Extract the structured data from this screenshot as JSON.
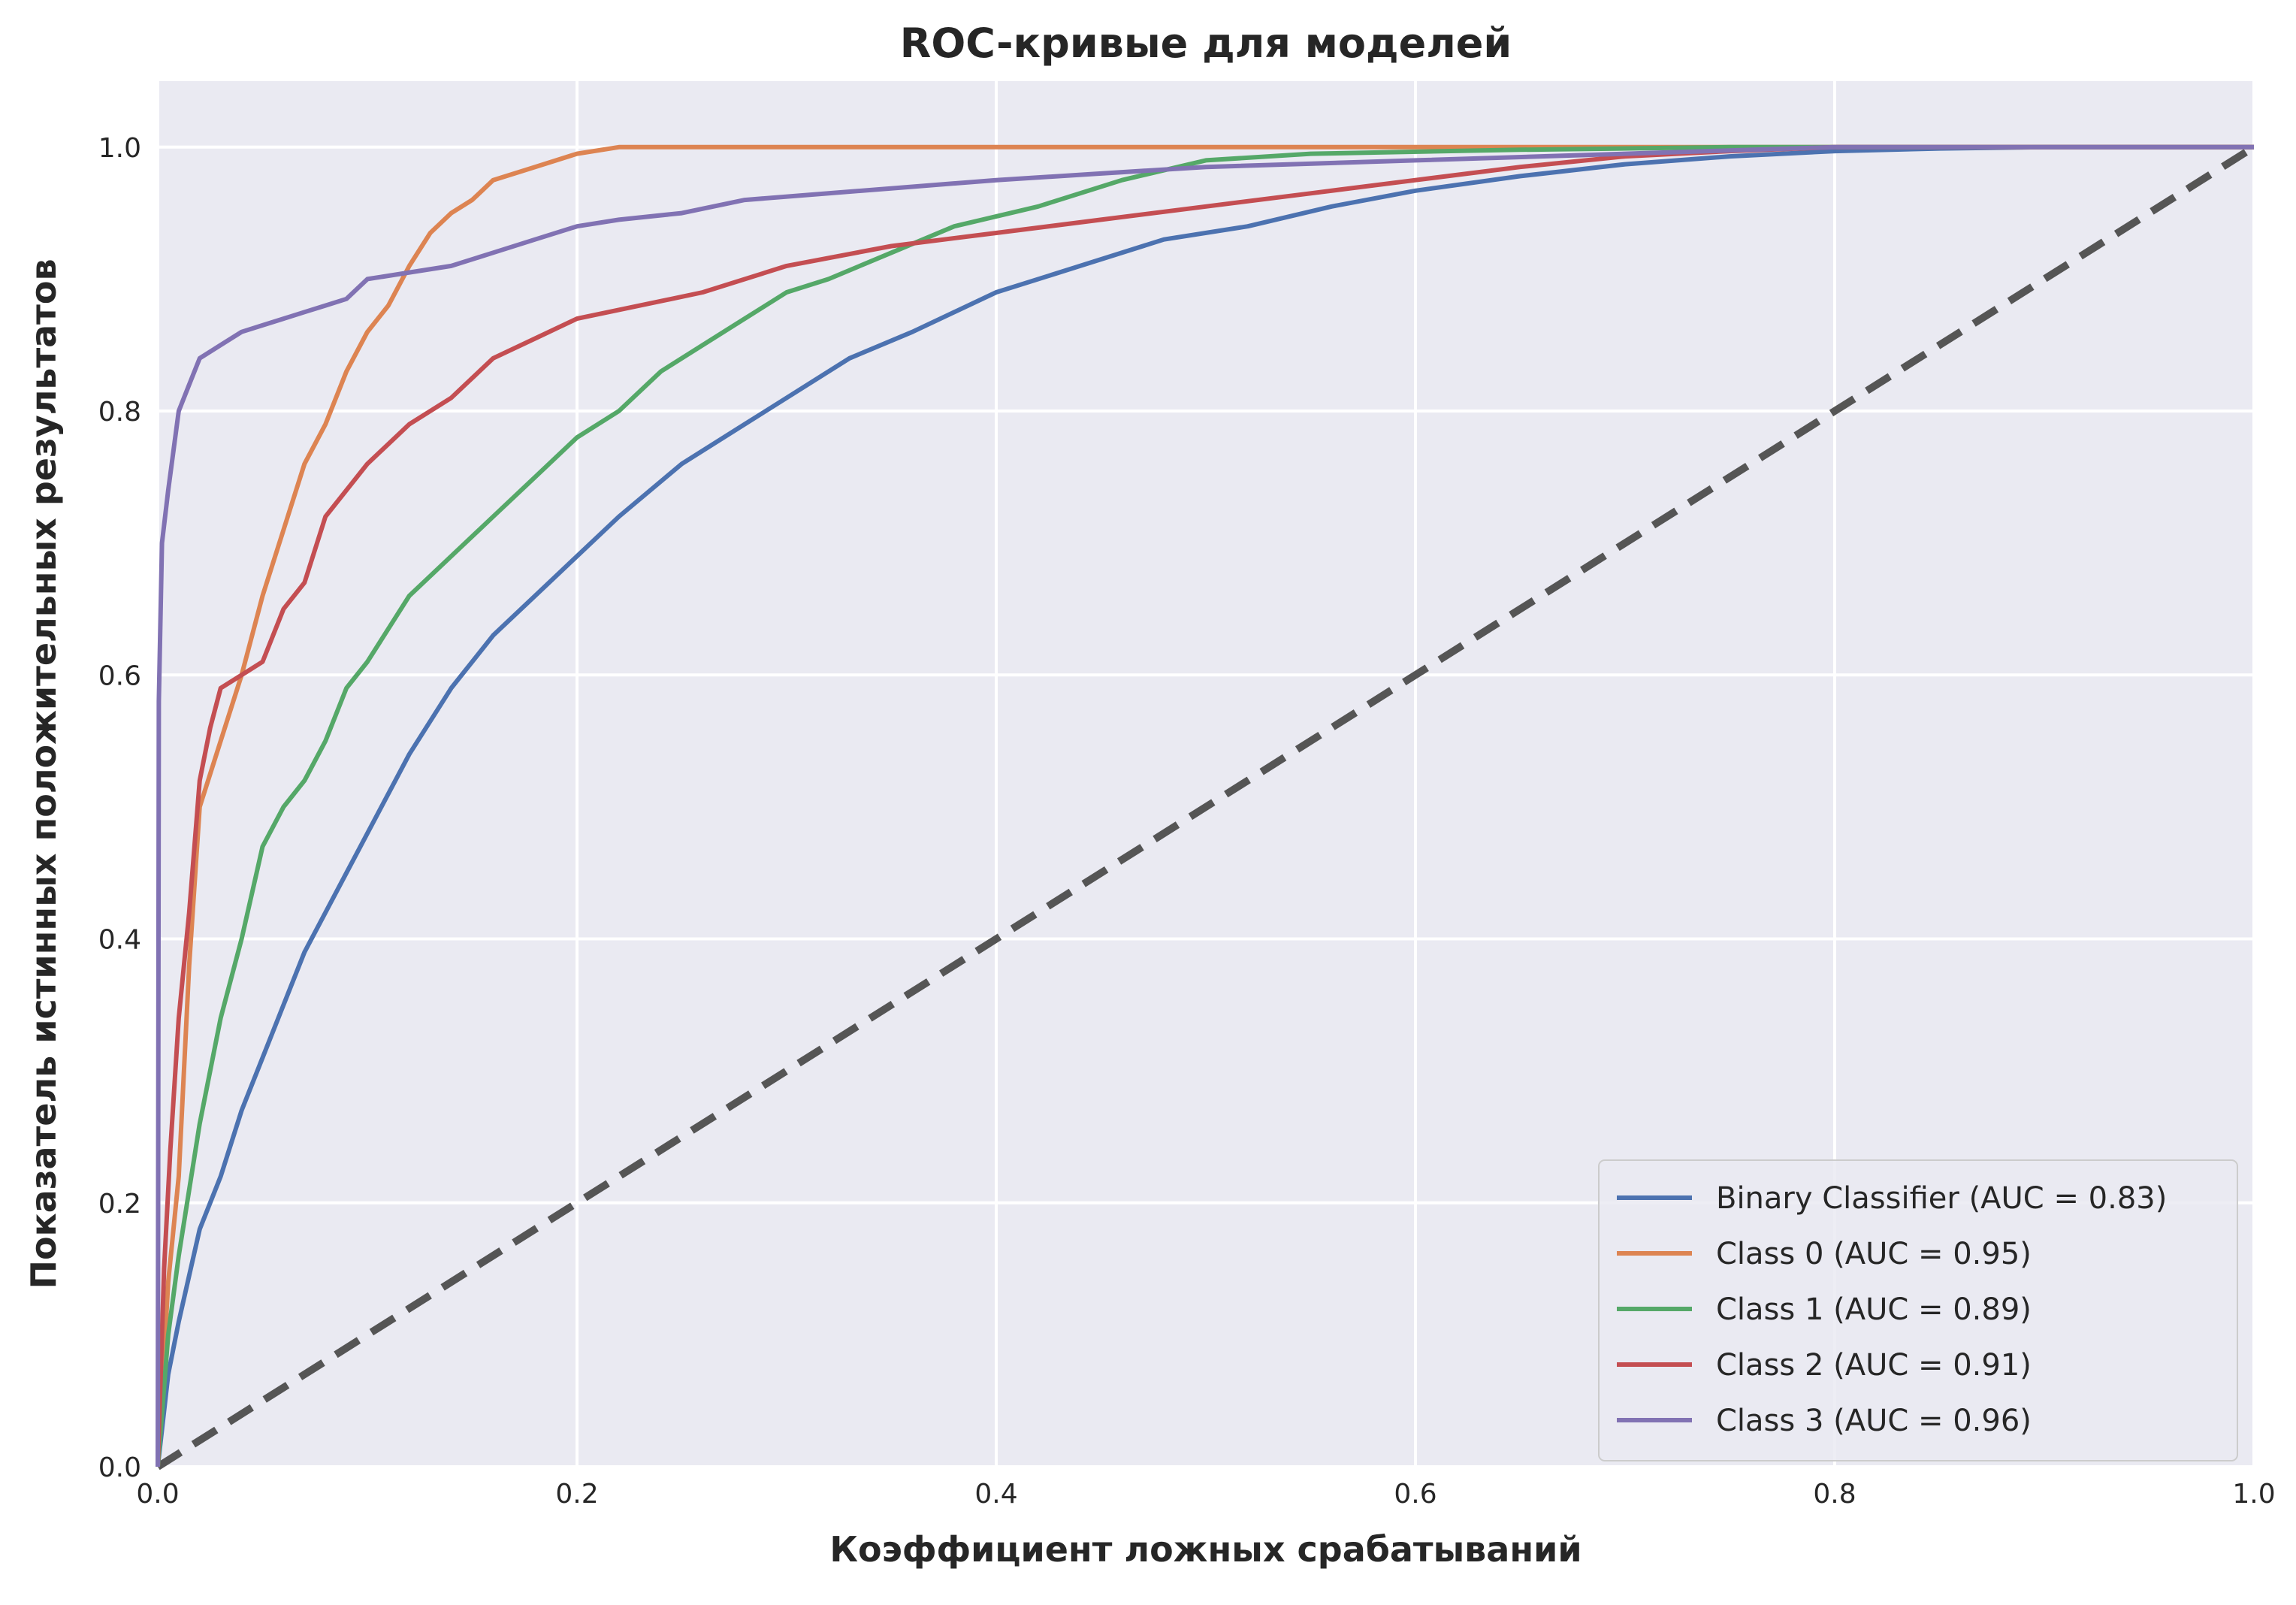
{
  "chart_data": {
    "type": "line",
    "title": "ROC-кривые для моделей",
    "xlabel": "Коэффициент ложных срабатываний",
    "ylabel": "Показатель истинных положительных результатов",
    "xlim": [
      0.0,
      1.0
    ],
    "ylim": [
      0.0,
      1.05
    ],
    "x_ticks": [
      "0.0",
      "0.2",
      "0.4",
      "0.6",
      "0.8",
      "1.0"
    ],
    "y_ticks": [
      "0.0",
      "0.2",
      "0.4",
      "0.6",
      "0.8",
      "1.0"
    ],
    "grid": true,
    "legend_position": "lower-right",
    "background": "#eaeaf2",
    "series": [
      {
        "name": "Binary Classifier (AUC = 0.83)",
        "color": "#4c72b0",
        "x": [
          0,
          0.005,
          0.01,
          0.02,
          0.03,
          0.04,
          0.05,
          0.06,
          0.07,
          0.08,
          0.09,
          0.1,
          0.12,
          0.14,
          0.16,
          0.18,
          0.2,
          0.22,
          0.25,
          0.28,
          0.3,
          0.33,
          0.36,
          0.4,
          0.44,
          0.48,
          0.52,
          0.56,
          0.6,
          0.65,
          0.7,
          0.75,
          0.8,
          0.85,
          0.9,
          1.0
        ],
        "y": [
          0,
          0.07,
          0.11,
          0.18,
          0.22,
          0.27,
          0.31,
          0.35,
          0.39,
          0.42,
          0.45,
          0.48,
          0.54,
          0.59,
          0.63,
          0.66,
          0.69,
          0.72,
          0.76,
          0.79,
          0.81,
          0.84,
          0.86,
          0.89,
          0.91,
          0.93,
          0.94,
          0.955,
          0.967,
          0.978,
          0.987,
          0.993,
          0.997,
          0.999,
          1.0,
          1.0
        ]
      },
      {
        "name": "Class 0 (AUC = 0.95)",
        "color": "#dd8452",
        "x": [
          0,
          0.005,
          0.01,
          0.015,
          0.02,
          0.03,
          0.04,
          0.05,
          0.06,
          0.07,
          0.08,
          0.09,
          0.1,
          0.11,
          0.12,
          0.13,
          0.14,
          0.15,
          0.16,
          0.18,
          0.2,
          0.22,
          0.3,
          0.5,
          1.0
        ],
        "y": [
          0,
          0.14,
          0.22,
          0.38,
          0.5,
          0.55,
          0.6,
          0.66,
          0.71,
          0.76,
          0.79,
          0.83,
          0.86,
          0.88,
          0.91,
          0.935,
          0.95,
          0.96,
          0.975,
          0.985,
          0.995,
          1.0,
          1.0,
          1.0,
          1.0
        ]
      },
      {
        "name": "Class 1 (AUC = 0.89)",
        "color": "#55a868",
        "x": [
          0,
          0.005,
          0.01,
          0.02,
          0.03,
          0.04,
          0.05,
          0.06,
          0.07,
          0.08,
          0.09,
          0.1,
          0.12,
          0.14,
          0.16,
          0.18,
          0.2,
          0.22,
          0.24,
          0.26,
          0.28,
          0.3,
          0.32,
          0.35,
          0.38,
          0.42,
          0.46,
          0.5,
          0.55,
          0.65,
          0.75,
          1.0
        ],
        "y": [
          0,
          0.1,
          0.16,
          0.26,
          0.34,
          0.4,
          0.47,
          0.5,
          0.52,
          0.55,
          0.59,
          0.61,
          0.66,
          0.69,
          0.72,
          0.75,
          0.78,
          0.8,
          0.83,
          0.85,
          0.87,
          0.89,
          0.9,
          0.92,
          0.94,
          0.955,
          0.975,
          0.99,
          0.995,
          0.998,
          1.0,
          1.0
        ]
      },
      {
        "name": "Class 2 (AUC = 0.91)",
        "color": "#c44e52",
        "x": [
          0,
          0.003,
          0.006,
          0.01,
          0.015,
          0.02,
          0.025,
          0.03,
          0.04,
          0.05,
          0.06,
          0.07,
          0.08,
          0.09,
          0.1,
          0.12,
          0.14,
          0.16,
          0.18,
          0.2,
          0.23,
          0.26,
          0.3,
          0.35,
          0.4,
          0.45,
          0.5,
          0.55,
          0.6,
          0.65,
          0.7,
          0.75,
          0.8,
          1.0
        ],
        "y": [
          0,
          0.15,
          0.24,
          0.34,
          0.42,
          0.52,
          0.56,
          0.59,
          0.6,
          0.61,
          0.65,
          0.67,
          0.72,
          0.74,
          0.76,
          0.79,
          0.81,
          0.84,
          0.855,
          0.87,
          0.88,
          0.89,
          0.91,
          0.925,
          0.935,
          0.945,
          0.955,
          0.965,
          0.975,
          0.985,
          0.993,
          0.997,
          1.0,
          1.0
        ]
      },
      {
        "name": "Class 3 (AUC = 0.96)",
        "color": "#8172b3",
        "x": [
          0,
          0.0005,
          0.002,
          0.005,
          0.01,
          0.015,
          0.02,
          0.03,
          0.04,
          0.05,
          0.06,
          0.07,
          0.08,
          0.09,
          0.1,
          0.12,
          0.14,
          0.16,
          0.18,
          0.2,
          0.22,
          0.25,
          0.28,
          0.32,
          0.36,
          0.4,
          0.45,
          0.5,
          0.6,
          0.7,
          0.8,
          1.0
        ],
        "y": [
          0,
          0.58,
          0.7,
          0.74,
          0.8,
          0.82,
          0.84,
          0.85,
          0.86,
          0.865,
          0.87,
          0.875,
          0.88,
          0.885,
          0.9,
          0.905,
          0.91,
          0.92,
          0.93,
          0.94,
          0.945,
          0.95,
          0.96,
          0.965,
          0.97,
          0.975,
          0.98,
          0.985,
          0.99,
          0.995,
          1.0,
          1.0
        ]
      }
    ],
    "reference_line": {
      "x": [
        0.0,
        1.0
      ],
      "y": [
        0.0,
        1.0
      ],
      "color": "#555555",
      "style": "dashed"
    }
  }
}
